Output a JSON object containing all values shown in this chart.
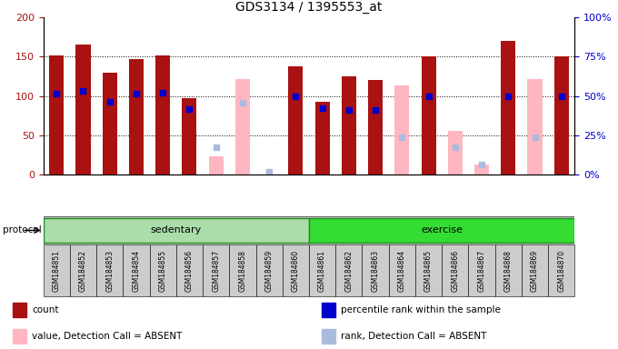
{
  "title": "GDS3134 / 1395553_at",
  "samples": [
    "GSM184851",
    "GSM184852",
    "GSM184853",
    "GSM184854",
    "GSM184855",
    "GSM184856",
    "GSM184857",
    "GSM184858",
    "GSM184859",
    "GSM184860",
    "GSM184861",
    "GSM184862",
    "GSM184863",
    "GSM184864",
    "GSM184865",
    "GSM184866",
    "GSM184867",
    "GSM184868",
    "GSM184869",
    "GSM184870"
  ],
  "count": [
    152,
    165,
    130,
    147,
    152,
    97,
    null,
    null,
    null,
    138,
    93,
    125,
    120,
    null,
    150,
    null,
    null,
    170,
    null,
    150
  ],
  "rank": [
    103,
    106,
    93,
    103,
    104,
    83,
    null,
    null,
    null,
    100,
    85,
    82,
    82,
    null,
    100,
    null,
    null,
    100,
    null,
    100
  ],
  "absent_value": [
    null,
    null,
    null,
    null,
    null,
    null,
    23,
    122,
    null,
    null,
    null,
    null,
    null,
    113,
    null,
    56,
    13,
    null,
    121,
    null
  ],
  "absent_rank": [
    null,
    null,
    null,
    null,
    null,
    null,
    35,
    91,
    3,
    null,
    null,
    null,
    null,
    47,
    null,
    35,
    13,
    null,
    47,
    null
  ],
  "sedentary_range": [
    0,
    9
  ],
  "exercise_range": [
    10,
    19
  ],
  "bar_color_red": "#AA1111",
  "bar_color_pink": "#FFB6C1",
  "dot_color_blue": "#0000CC",
  "dot_color_lightblue": "#AABBDD",
  "group_color_sedentary": "#AADDAA",
  "group_color_exercise": "#33DD33",
  "protocol_label": "protocol"
}
